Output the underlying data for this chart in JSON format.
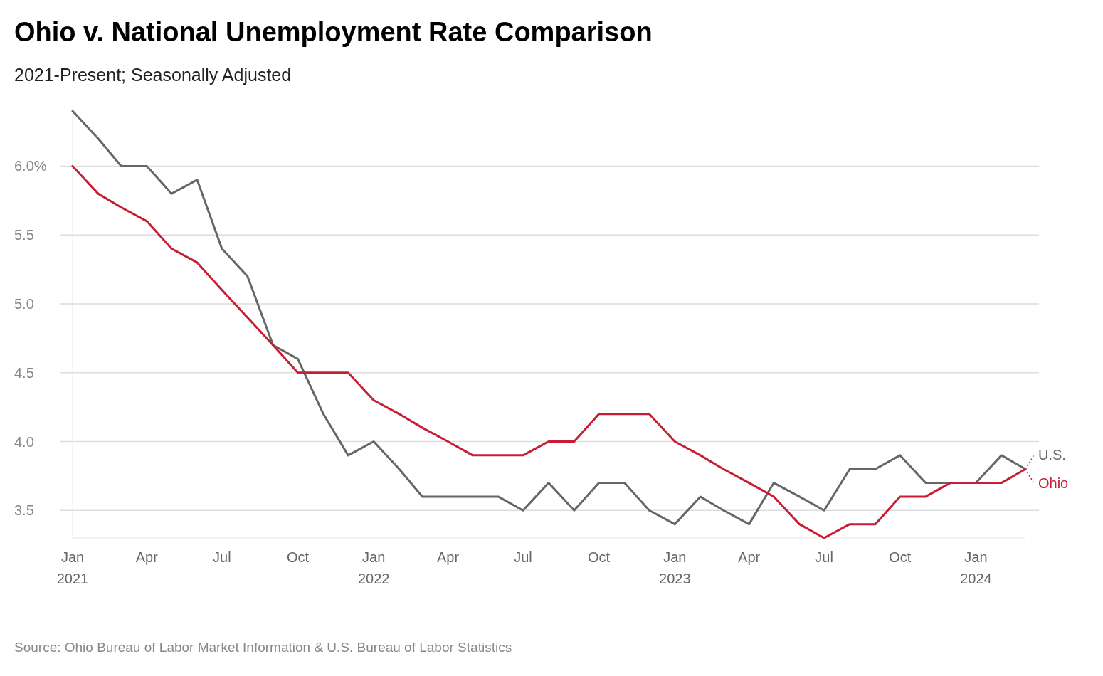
{
  "chart_data": {
    "type": "line",
    "title": "Ohio v. National Unemployment Rate Comparison",
    "subtitle": "2021-Present; Seasonally Adjusted",
    "x": [
      "2021-01",
      "2021-02",
      "2021-03",
      "2021-04",
      "2021-05",
      "2021-06",
      "2021-07",
      "2021-08",
      "2021-09",
      "2021-10",
      "2021-11",
      "2021-12",
      "2022-01",
      "2022-02",
      "2022-03",
      "2022-04",
      "2022-05",
      "2022-06",
      "2022-07",
      "2022-08",
      "2022-09",
      "2022-10",
      "2022-11",
      "2022-12",
      "2023-01",
      "2023-02",
      "2023-03",
      "2023-04",
      "2023-05",
      "2023-06",
      "2023-07",
      "2023-08",
      "2023-09",
      "2023-10",
      "2023-11",
      "2023-12",
      "2024-01",
      "2024-02",
      "2024-03"
    ],
    "series": [
      {
        "name": "U.S.",
        "color": "#666666",
        "values": [
          6.4,
          6.2,
          6.0,
          6.0,
          5.8,
          5.9,
          5.4,
          5.2,
          4.7,
          4.6,
          4.2,
          3.9,
          4.0,
          3.8,
          3.6,
          3.6,
          3.6,
          3.6,
          3.5,
          3.7,
          3.5,
          3.7,
          3.7,
          3.5,
          3.4,
          3.6,
          3.5,
          3.4,
          3.7,
          3.6,
          3.5,
          3.8,
          3.8,
          3.9,
          3.7,
          3.7,
          3.7,
          3.9,
          3.8
        ]
      },
      {
        "name": "Ohio",
        "color": "#c71e35",
        "values": [
          6.0,
          5.8,
          5.7,
          5.6,
          5.4,
          5.3,
          5.1,
          4.9,
          4.7,
          4.5,
          4.5,
          4.5,
          4.3,
          4.2,
          4.1,
          4.0,
          3.9,
          3.9,
          3.9,
          4.0,
          4.0,
          4.2,
          4.2,
          4.2,
          4.0,
          3.9,
          3.8,
          3.7,
          3.6,
          3.4,
          3.3,
          3.4,
          3.4,
          3.6,
          3.6,
          3.7,
          3.7,
          3.7,
          3.8
        ]
      }
    ],
    "xlim": [
      "2021-01",
      "2024-03"
    ],
    "xticks": [
      {
        "value": "2021-01",
        "label": "Jan\n2021"
      },
      {
        "value": "2021-04",
        "label": "Apr"
      },
      {
        "value": "2021-07",
        "label": "Jul"
      },
      {
        "value": "2021-10",
        "label": "Oct"
      },
      {
        "value": "2022-01",
        "label": "Jan\n2022"
      },
      {
        "value": "2022-04",
        "label": "Apr"
      },
      {
        "value": "2022-07",
        "label": "Jul"
      },
      {
        "value": "2022-10",
        "label": "Oct"
      },
      {
        "value": "2023-01",
        "label": "Jan\n2023"
      },
      {
        "value": "2023-04",
        "label": "Apr"
      },
      {
        "value": "2023-07",
        "label": "Jul"
      },
      {
        "value": "2023-10",
        "label": "Oct"
      },
      {
        "value": "2024-01",
        "label": "Jan\n2024"
      }
    ],
    "ylim": [
      3.3,
      6.4
    ],
    "yticks": [
      {
        "value": 3.5,
        "label": "3.5"
      },
      {
        "value": 4,
        "label": "4.0"
      },
      {
        "value": 4.5,
        "label": "4.5"
      },
      {
        "value": 5,
        "label": "5.0"
      },
      {
        "value": 5.5,
        "label": "5.5"
      },
      {
        "value": 6,
        "label": "6.0%"
      }
    ],
    "grid": "y",
    "legend": "right",
    "annotations": [
      "Source: Ohio Bureau of Labor Market Information & U.S. Bureau of Labor Statistics"
    ]
  }
}
